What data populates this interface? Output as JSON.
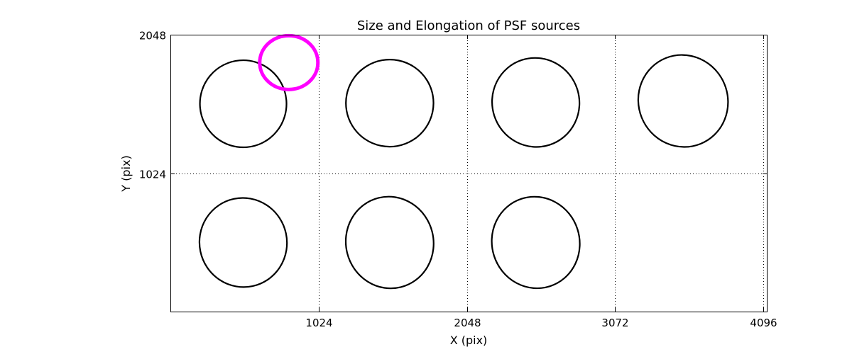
{
  "chart_data": {
    "type": "scatter",
    "title": "Size and Elongation of PSF sources",
    "xlabel": "X (pix)",
    "ylabel": "Y (pix)",
    "xlim": [
      0,
      4120
    ],
    "ylim": [
      0,
      2048
    ],
    "xticks": [
      1024,
      2048,
      3072,
      4096
    ],
    "yticks": [
      1024,
      2048
    ],
    "xtick_labels": [
      "1024",
      "2048",
      "3072",
      "4096"
    ],
    "ytick_labels": [
      "1024",
      "2048"
    ],
    "grid": true,
    "series": [
      {
        "marker": "ellipse",
        "color": "#000000",
        "points": [
          {
            "x": 503,
            "y": 1537,
            "w": 598,
            "h": 644,
            "angle": -5
          },
          {
            "x": 1515,
            "y": 1542,
            "w": 605,
            "h": 644,
            "angle": -10
          },
          {
            "x": 2524,
            "y": 1547,
            "w": 602,
            "h": 660,
            "angle": -18
          },
          {
            "x": 3542,
            "y": 1558,
            "w": 617,
            "h": 684,
            "angle": -22
          },
          {
            "x": 503,
            "y": 511,
            "w": 604,
            "h": 660,
            "angle": -12
          },
          {
            "x": 1515,
            "y": 511,
            "w": 605,
            "h": 680,
            "angle": -14
          },
          {
            "x": 2524,
            "y": 511,
            "w": 605,
            "h": 680,
            "angle": -18
          }
        ]
      },
      {
        "marker": "ellipse",
        "color": "#ff00ff",
        "points": [
          {
            "x": 818,
            "y": 1842,
            "w": 402,
            "h": 398,
            "angle": 0
          }
        ]
      }
    ]
  }
}
